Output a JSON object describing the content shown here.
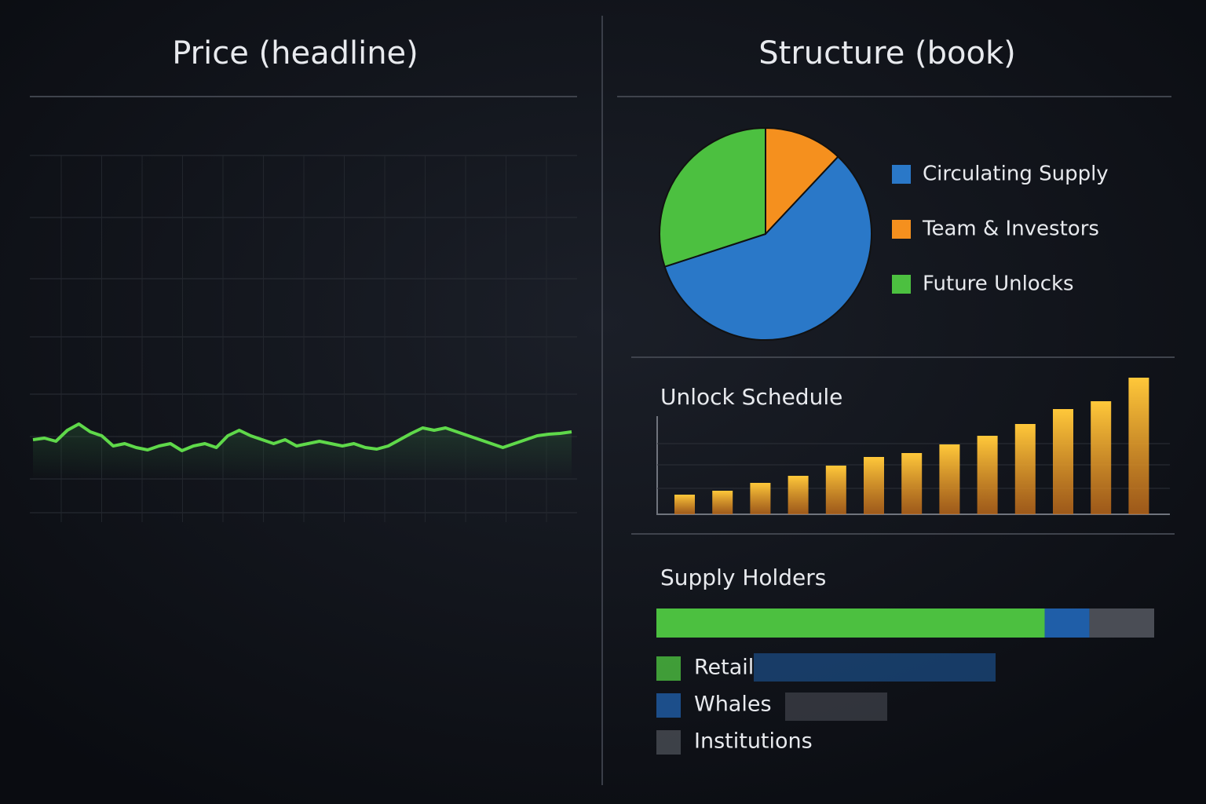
{
  "chart_data": [
    {
      "type": "line",
      "title": "Price (headline)",
      "color": "#5fd94a",
      "values": [
        95,
        97,
        93,
        107,
        115,
        105,
        100,
        87,
        90,
        85,
        82,
        87,
        90,
        81,
        87,
        90,
        85,
        100,
        107,
        100,
        95,
        90,
        95,
        87,
        90,
        93,
        90,
        87,
        90,
        85,
        83,
        87,
        95,
        103,
        110,
        107,
        110,
        105,
        100,
        95,
        90,
        85,
        90,
        95,
        100,
        102,
        103,
        105
      ],
      "ylim": [
        0,
        457
      ]
    },
    {
      "type": "pie",
      "title": "Structure (book)",
      "categories": [
        "Circulating Supply",
        "Team & Investors",
        "Future Unlocks"
      ],
      "values": [
        58,
        12,
        30
      ],
      "colors": [
        "#2a78c8",
        "#f5901e",
        "#4cc040"
      ]
    },
    {
      "type": "bar",
      "title": "Unlock Schedule",
      "color": "#f5a623",
      "values": [
        25,
        30,
        40,
        49,
        62,
        73,
        78,
        89,
        100,
        115,
        134,
        144,
        174
      ],
      "ylim": [
        0,
        180
      ]
    },
    {
      "type": "stacked-bar",
      "title": "Supply Holders",
      "xlim": [
        0,
        100
      ],
      "series": [
        {
          "name": "Retail",
          "color": "#4cc040",
          "values": [
            78
          ]
        },
        {
          "name": "Whales",
          "color": "#1f5ea8",
          "values": [
            9
          ]
        },
        {
          "name": "Institutions",
          "color": "#4a4d55",
          "values": [
            13
          ]
        }
      ]
    }
  ]
}
